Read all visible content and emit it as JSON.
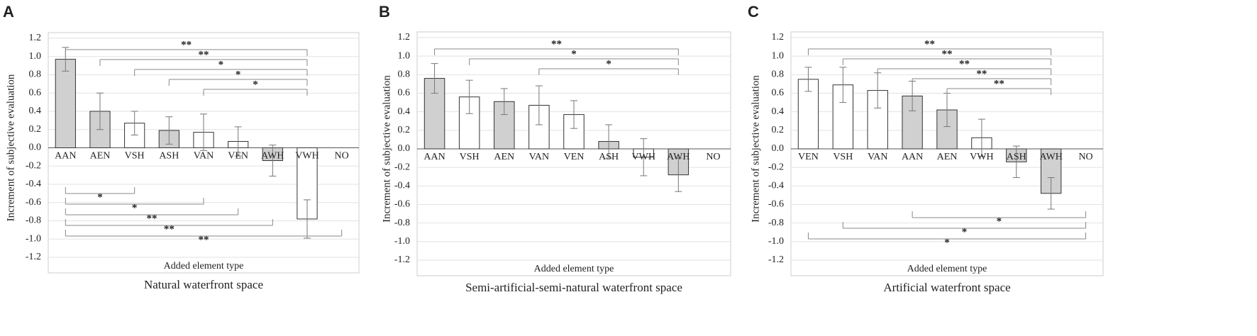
{
  "chart_data": [
    {
      "type": "bar",
      "panel_label": "A",
      "title": "Natural waterfront space",
      "y_label": "Increment of subjective evaluation",
      "x_label": "Added element type",
      "categories": [
        "AAN",
        "AEN",
        "VSH",
        "ASH",
        "VAN",
        "VEN",
        "AWH",
        "VWH",
        "NO"
      ],
      "values": [
        0.97,
        0.4,
        0.27,
        0.19,
        0.17,
        0.07,
        -0.14,
        -0.78,
        null
      ],
      "errors": [
        0.13,
        0.2,
        0.13,
        0.15,
        0.2,
        0.16,
        0.17,
        0.21,
        null
      ],
      "colors": [
        "#d0d0d0",
        "#d0d0d0",
        "#ffffff",
        "#d0d0d0",
        "#ffffff",
        "#ffffff",
        "#d0d0d0",
        "#ffffff",
        "#ffffff"
      ],
      "ylim": [
        -1.2,
        1.2
      ],
      "yticks": [
        -1.2,
        {
          "value": -1.0,
          "label": "-1.0"
        },
        -0.8,
        -0.6,
        -0.4,
        -0.2,
        {
          "value": 0,
          "label": "0.0"
        },
        0.2,
        0.4,
        0.6,
        0.8,
        {
          "value": 1.0,
          "label": "1.0"
        },
        1.2
      ],
      "grid": true,
      "brackets": [
        {
          "from": "AAN",
          "to": "VWH",
          "label": "**",
          "side": "top"
        },
        {
          "from": "AEN",
          "to": "VWH",
          "label": "**",
          "side": "top"
        },
        {
          "from": "VSH",
          "to": "VWH",
          "label": "*",
          "side": "top"
        },
        {
          "from": "ASH",
          "to": "VWH",
          "label": "*",
          "side": "top"
        },
        {
          "from": "VAN",
          "to": "VWH",
          "label": "*",
          "side": "top"
        },
        {
          "from": "AAN",
          "to": "VSH",
          "label": "*",
          "side": "bottom"
        },
        {
          "from": "AAN",
          "to": "VAN",
          "label": "*",
          "side": "bottom"
        },
        {
          "from": "AAN",
          "to": "VEN",
          "label": "**",
          "side": "bottom"
        },
        {
          "from": "AAN",
          "to": "AWH",
          "label": "**",
          "side": "bottom"
        },
        {
          "from": "AAN",
          "to": "NO",
          "label": "**",
          "side": "bottom"
        }
      ]
    },
    {
      "type": "bar",
      "panel_label": "B",
      "title": "Semi-artificial-semi-natural waterfront space",
      "y_label": "Increment of subjective evaluation",
      "x_label": "Added element type",
      "categories": [
        "AAN",
        "VSH",
        "AEN",
        "VAN",
        "VEN",
        "ASH",
        "VWH",
        "AWH",
        "NO"
      ],
      "values": [
        0.76,
        0.56,
        0.51,
        0.47,
        0.37,
        0.08,
        -0.09,
        -0.28,
        null
      ],
      "errors": [
        0.16,
        0.18,
        0.14,
        0.21,
        0.15,
        0.18,
        0.2,
        0.18,
        null
      ],
      "colors": [
        "#d0d0d0",
        "#ffffff",
        "#d0d0d0",
        "#ffffff",
        "#ffffff",
        "#d0d0d0",
        "#ffffff",
        "#d0d0d0",
        "#ffffff"
      ],
      "ylim": [
        -1.2,
        1.2
      ],
      "yticks": [
        -1.2,
        {
          "value": -1.0,
          "label": "-1.0"
        },
        -0.8,
        -0.6,
        -0.4,
        -0.2,
        {
          "value": 0,
          "label": "0.0"
        },
        0.2,
        0.4,
        0.6,
        0.8,
        {
          "value": 1.0,
          "label": "1.0"
        },
        1.2
      ],
      "grid": true,
      "brackets": [
        {
          "from": "AAN",
          "to": "AWH",
          "label": "**",
          "side": "top"
        },
        {
          "from": "VSH",
          "to": "AWH",
          "label": "*",
          "side": "top"
        },
        {
          "from": "VAN",
          "to": "AWH",
          "label": "*",
          "side": "top"
        }
      ]
    },
    {
      "type": "bar",
      "panel_label": "C",
      "title": "Artificial waterfront space",
      "y_label": "Increment of subjective evaluation",
      "x_label": "Added element type",
      "categories": [
        "VEN",
        "VSH",
        "VAN",
        "AAN",
        "AEN",
        "VWH",
        "ASH",
        "AWH",
        "NO"
      ],
      "values": [
        0.75,
        0.69,
        0.63,
        0.57,
        0.42,
        0.12,
        -0.14,
        -0.48,
        null
      ],
      "errors": [
        0.13,
        0.19,
        0.19,
        0.16,
        0.18,
        0.2,
        0.17,
        0.17,
        null
      ],
      "colors": [
        "#ffffff",
        "#ffffff",
        "#ffffff",
        "#d0d0d0",
        "#d0d0d0",
        "#ffffff",
        "#d0d0d0",
        "#d0d0d0",
        "#ffffff"
      ],
      "ylim": [
        -1.2,
        1.2
      ],
      "yticks": [
        -1.2,
        {
          "value": -1.0,
          "label": "-1.0"
        },
        -0.8,
        -0.6,
        -0.4,
        -0.2,
        {
          "value": 0,
          "label": "0.0"
        },
        0.2,
        0.4,
        0.6,
        0.8,
        {
          "value": 1.0,
          "label": "1.0"
        },
        1.2
      ],
      "grid": true,
      "brackets": [
        {
          "from": "VEN",
          "to": "AWH",
          "label": "**",
          "side": "top"
        },
        {
          "from": "VSH",
          "to": "AWH",
          "label": "**",
          "side": "top"
        },
        {
          "from": "VAN",
          "to": "AWH",
          "label": "**",
          "side": "top"
        },
        {
          "from": "AAN",
          "to": "AWH",
          "label": "**",
          "side": "top"
        },
        {
          "from": "AEN",
          "to": "AWH",
          "label": "**",
          "side": "top"
        },
        {
          "from": "AAN",
          "to": "NO",
          "label": "*",
          "side": "bottom"
        },
        {
          "from": "VSH",
          "to": "NO",
          "label": "*",
          "side": "bottom"
        },
        {
          "from": "VEN",
          "to": "NO",
          "label": "*",
          "side": "bottom"
        }
      ]
    }
  ]
}
